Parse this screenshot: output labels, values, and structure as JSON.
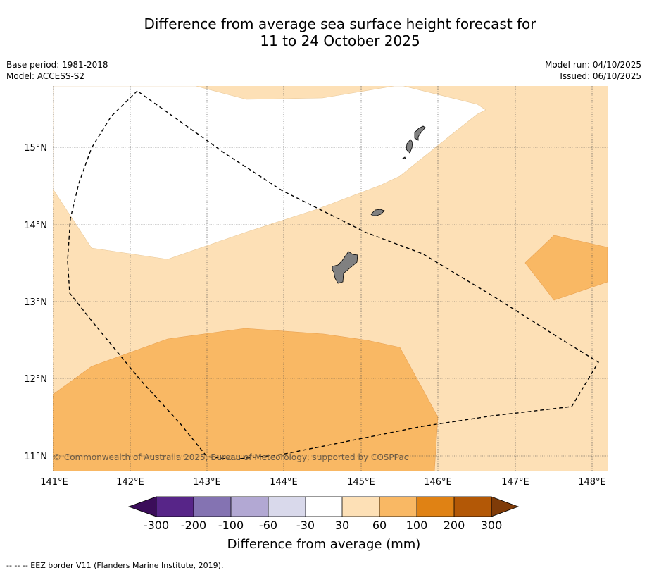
{
  "title_line1": "Difference from average sea surface height forecast for",
  "title_line2": "11 to 24 October 2025",
  "meta": {
    "base_period": "Base period: 1981-2018",
    "model": "Model: ACCESS-S2",
    "model_run": "Model run: 04/10/2025",
    "issued": "Issued: 06/10/2025"
  },
  "map": {
    "lon_labels": [
      "141°E",
      "142°E",
      "143°E",
      "144°E",
      "145°E",
      "146°E",
      "147°E",
      "148°E"
    ],
    "lat_labels": [
      "15°N",
      "14°N",
      "13°N",
      "12°N",
      "11°N"
    ],
    "copyright": "© Commonwealth of Australia 2025, Bureau of Meteorology, supported by COSPPac",
    "colors": {
      "light_orange": "#fde0b6",
      "mid_orange": "#f9b864",
      "land": "#808080",
      "white": "#ffffff"
    }
  },
  "colorbar": {
    "tick_labels": [
      "-300",
      "-200",
      "-100",
      "-60",
      "-30",
      "30",
      "60",
      "100",
      "200",
      "300"
    ],
    "colors": [
      "#3b0d5a",
      "#572588",
      "#8473b2",
      "#b2a8d3",
      "#d9d9eb",
      "#ffffff",
      "#fde0b6",
      "#f9b864",
      "#e08214",
      "#b35806",
      "#7f3b08"
    ],
    "title": "Difference from average (mm)"
  },
  "footnote": "--  --  -- EEZ border V11 (Flanders Marine Institute, 2019)."
}
